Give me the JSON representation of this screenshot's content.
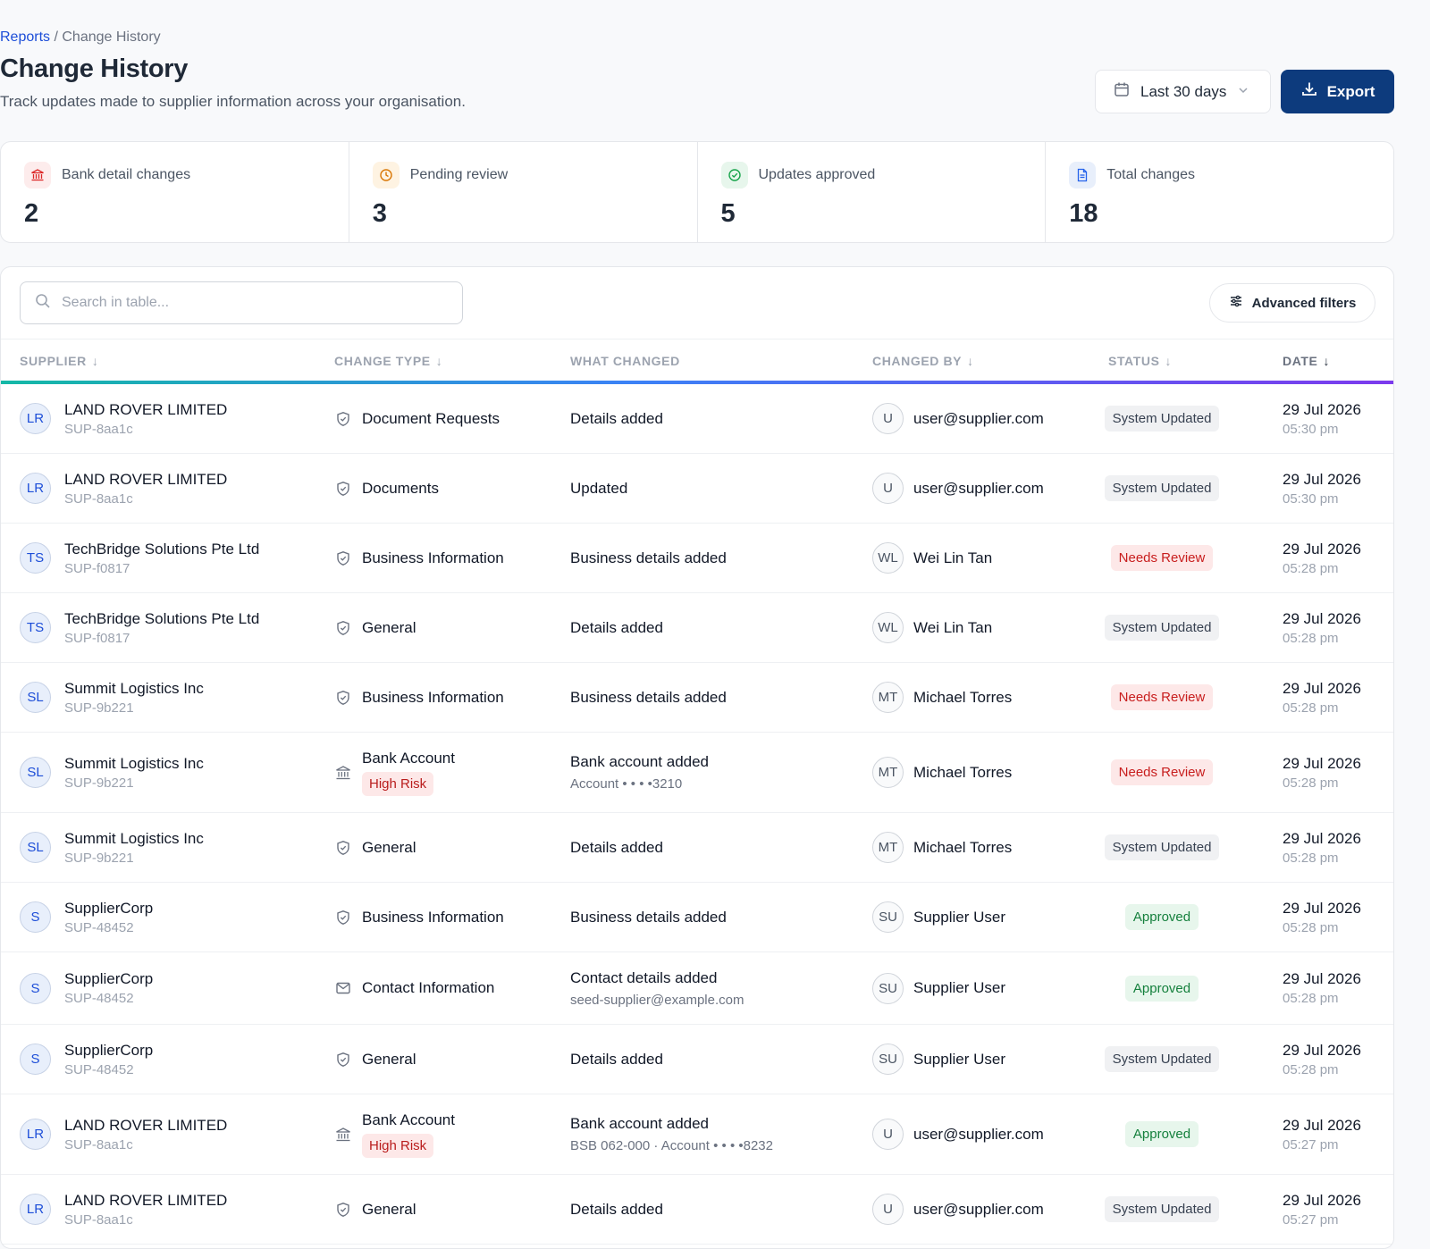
{
  "breadcrumb": {
    "parent": "Reports",
    "separator": " / ",
    "current": "Change History"
  },
  "header": {
    "title": "Change History",
    "subtitle": "Track updates made to supplier information across your organisation.",
    "date_range": "Last 30 days",
    "export_label": "Export"
  },
  "stats": [
    {
      "label": "Bank detail changes",
      "value": "2",
      "icon": "bank-icon",
      "color": "#dc2626",
      "bg": "#fdecec"
    },
    {
      "label": "Pending review",
      "value": "3",
      "icon": "clock-icon",
      "color": "#d97706",
      "bg": "#fef3e2"
    },
    {
      "label": "Updates approved",
      "value": "5",
      "icon": "check-circle-icon",
      "color": "#16a34a",
      "bg": "#e7f6ec"
    },
    {
      "label": "Total changes",
      "value": "18",
      "icon": "document-icon",
      "color": "#2563eb",
      "bg": "#e8effb"
    }
  ],
  "table": {
    "search_placeholder": "Search in table...",
    "advanced_filters_label": "Advanced filters",
    "columns": [
      "SUPPLIER",
      "CHANGE TYPE",
      "WHAT CHANGED",
      "CHANGED BY",
      "STATUS",
      "DATE"
    ],
    "rows": [
      {
        "initials": "LR",
        "supplier": "LAND ROVER LIMITED",
        "supplier_id": "SUP-8aa1c",
        "change_icon": "shield-check-icon",
        "change_type": "Document Requests",
        "risk": "",
        "what": "Details added",
        "what_sub": "",
        "by_initials": "U",
        "by": "user@supplier.com",
        "status": "System Updated",
        "status_kind": "sys",
        "date": "29 Jul 2026",
        "time": "05:30 pm"
      },
      {
        "initials": "LR",
        "supplier": "LAND ROVER LIMITED",
        "supplier_id": "SUP-8aa1c",
        "change_icon": "shield-check-icon",
        "change_type": "Documents",
        "risk": "",
        "what": "Updated",
        "what_sub": "",
        "by_initials": "U",
        "by": "user@supplier.com",
        "status": "System Updated",
        "status_kind": "sys",
        "date": "29 Jul 2026",
        "time": "05:30 pm"
      },
      {
        "initials": "TS",
        "supplier": "TechBridge Solutions Pte Ltd",
        "supplier_id": "SUP-f0817",
        "change_icon": "shield-check-icon",
        "change_type": "Business Information",
        "risk": "",
        "what": "Business details added",
        "what_sub": "",
        "by_initials": "WL",
        "by": "Wei Lin Tan",
        "status": "Needs Review",
        "status_kind": "review",
        "date": "29 Jul 2026",
        "time": "05:28 pm"
      },
      {
        "initials": "TS",
        "supplier": "TechBridge Solutions Pte Ltd",
        "supplier_id": "SUP-f0817",
        "change_icon": "shield-check-icon",
        "change_type": "General",
        "risk": "",
        "what": "Details added",
        "what_sub": "",
        "by_initials": "WL",
        "by": "Wei Lin Tan",
        "status": "System Updated",
        "status_kind": "sys",
        "date": "29 Jul 2026",
        "time": "05:28 pm"
      },
      {
        "initials": "SL",
        "supplier": "Summit Logistics Inc",
        "supplier_id": "SUP-9b221",
        "change_icon": "shield-check-icon",
        "change_type": "Business Information",
        "risk": "",
        "what": "Business details added",
        "what_sub": "",
        "by_initials": "MT",
        "by": "Michael Torres",
        "status": "Needs Review",
        "status_kind": "review",
        "date": "29 Jul 2026",
        "time": "05:28 pm"
      },
      {
        "initials": "SL",
        "supplier": "Summit Logistics Inc",
        "supplier_id": "SUP-9b221",
        "change_icon": "bank-icon",
        "change_type": "Bank Account",
        "risk": "High Risk",
        "what": "Bank account added",
        "what_sub": "Account • • • •3210",
        "by_initials": "MT",
        "by": "Michael Torres",
        "status": "Needs Review",
        "status_kind": "review",
        "date": "29 Jul 2026",
        "time": "05:28 pm"
      },
      {
        "initials": "SL",
        "supplier": "Summit Logistics Inc",
        "supplier_id": "SUP-9b221",
        "change_icon": "shield-check-icon",
        "change_type": "General",
        "risk": "",
        "what": "Details added",
        "what_sub": "",
        "by_initials": "MT",
        "by": "Michael Torres",
        "status": "System Updated",
        "status_kind": "sys",
        "date": "29 Jul 2026",
        "time": "05:28 pm"
      },
      {
        "initials": "S",
        "supplier": "SupplierCorp",
        "supplier_id": "SUP-48452",
        "change_icon": "shield-check-icon",
        "change_type": "Business Information",
        "risk": "",
        "what": "Business details added",
        "what_sub": "",
        "by_initials": "SU",
        "by": "Supplier User",
        "status": "Approved",
        "status_kind": "approved",
        "date": "29 Jul 2026",
        "time": "05:28 pm"
      },
      {
        "initials": "S",
        "supplier": "SupplierCorp",
        "supplier_id": "SUP-48452",
        "change_icon": "mail-icon",
        "change_type": "Contact Information",
        "risk": "",
        "what": "Contact details added",
        "what_sub": "seed-supplier@example.com",
        "by_initials": "SU",
        "by": "Supplier User",
        "status": "Approved",
        "status_kind": "approved",
        "date": "29 Jul 2026",
        "time": "05:28 pm"
      },
      {
        "initials": "S",
        "supplier": "SupplierCorp",
        "supplier_id": "SUP-48452",
        "change_icon": "shield-check-icon",
        "change_type": "General",
        "risk": "",
        "what": "Details added",
        "what_sub": "",
        "by_initials": "SU",
        "by": "Supplier User",
        "status": "System Updated",
        "status_kind": "sys",
        "date": "29 Jul 2026",
        "time": "05:28 pm"
      },
      {
        "initials": "LR",
        "supplier": "LAND ROVER LIMITED",
        "supplier_id": "SUP-8aa1c",
        "change_icon": "bank-icon",
        "change_type": "Bank Account",
        "risk": "High Risk",
        "what": "Bank account added",
        "what_sub": "BSB 062-000 · Account • • • •8232",
        "by_initials": "U",
        "by": "user@supplier.com",
        "status": "Approved",
        "status_kind": "approved",
        "date": "29 Jul 2026",
        "time": "05:27 pm"
      },
      {
        "initials": "LR",
        "supplier": "LAND ROVER LIMITED",
        "supplier_id": "SUP-8aa1c",
        "change_icon": "shield-check-icon",
        "change_type": "General",
        "risk": "",
        "what": "Details added",
        "what_sub": "",
        "by_initials": "U",
        "by": "user@supplier.com",
        "status": "System Updated",
        "status_kind": "sys",
        "date": "29 Jul 2026",
        "time": "05:27 pm"
      }
    ]
  }
}
